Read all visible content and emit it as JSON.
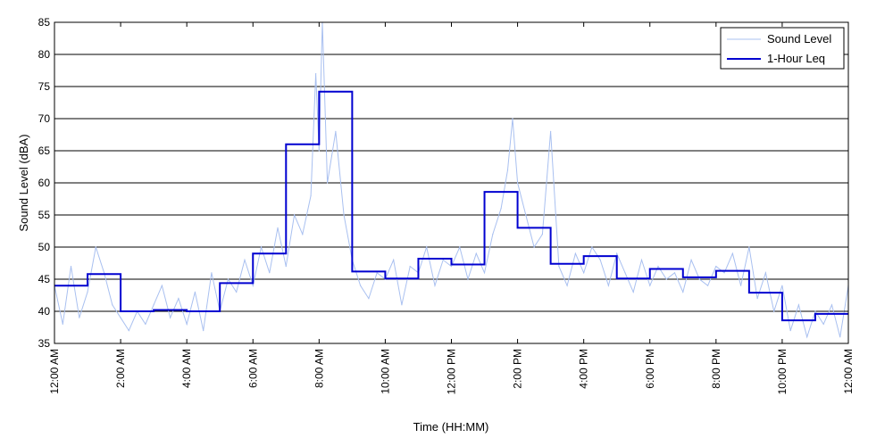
{
  "chart_data": {
    "type": "line",
    "title": "",
    "xlabel": "Time (HH:MM)",
    "ylabel": "Sound Level (dBA)",
    "xlim_hours": [
      0,
      24
    ],
    "ylim": [
      35,
      85
    ],
    "y_ticks": [
      35,
      40,
      45,
      50,
      55,
      60,
      65,
      70,
      75,
      80,
      85
    ],
    "x_ticks": [
      {
        "hour": 0,
        "label": "12:00 AM"
      },
      {
        "hour": 2,
        "label": "2:00 AM"
      },
      {
        "hour": 4,
        "label": "4:00 AM"
      },
      {
        "hour": 6,
        "label": "6:00 AM"
      },
      {
        "hour": 8,
        "label": "8:00 AM"
      },
      {
        "hour": 10,
        "label": "10:00 AM"
      },
      {
        "hour": 12,
        "label": "12:00 PM"
      },
      {
        "hour": 14,
        "label": "2:00 PM"
      },
      {
        "hour": 16,
        "label": "4:00 PM"
      },
      {
        "hour": 18,
        "label": "6:00 PM"
      },
      {
        "hour": 20,
        "label": "8:00 PM"
      },
      {
        "hour": 22,
        "label": "10:00 PM"
      },
      {
        "hour": 24,
        "label": "12:00 AM"
      }
    ],
    "grid": "horizontal",
    "legend_position": "top-right",
    "colors": {
      "sound_level": "#a9c0f0",
      "leq": "#0000d0",
      "grid": "#000000",
      "axis": "#000000"
    },
    "series": [
      {
        "name": "Sound Level",
        "style": "thin-light-line",
        "x_hours": [
          0,
          0.25,
          0.5,
          0.75,
          1,
          1.25,
          1.5,
          1.75,
          2,
          2.25,
          2.5,
          2.75,
          3,
          3.25,
          3.5,
          3.75,
          4,
          4.25,
          4.5,
          4.75,
          5,
          5.25,
          5.5,
          5.75,
          6,
          6.25,
          6.5,
          6.75,
          7,
          7.25,
          7.5,
          7.75,
          7.9,
          8,
          8.1,
          8.25,
          8.5,
          8.75,
          9,
          9.25,
          9.5,
          9.75,
          10,
          10.25,
          10.5,
          10.75,
          11,
          11.25,
          11.5,
          11.75,
          12,
          12.25,
          12.5,
          12.75,
          13,
          13.25,
          13.5,
          13.7,
          13.85,
          14,
          14.25,
          14.5,
          14.75,
          15,
          15.25,
          15.5,
          15.75,
          16,
          16.25,
          16.5,
          16.75,
          17,
          17.25,
          17.5,
          17.75,
          18,
          18.25,
          18.5,
          18.75,
          19,
          19.25,
          19.5,
          19.75,
          20,
          20.25,
          20.5,
          20.75,
          21,
          21.25,
          21.5,
          21.75,
          22,
          22.25,
          22.5,
          22.75,
          23,
          23.25,
          23.5,
          23.75,
          24
        ],
        "values": [
          44,
          38,
          47,
          39,
          43,
          50,
          46,
          41,
          39,
          37,
          40,
          38,
          41,
          44,
          39,
          42,
          38,
          43,
          37,
          46,
          40,
          45,
          43,
          48,
          44,
          50,
          46,
          53,
          47,
          55,
          52,
          58,
          77,
          65,
          85,
          60,
          68,
          55,
          48,
          44,
          42,
          46,
          45,
          48,
          41,
          47,
          46,
          50,
          44,
          48,
          47,
          50,
          45,
          49,
          46,
          52,
          56,
          62,
          70,
          60,
          55,
          50,
          52,
          68,
          47,
          44,
          49,
          46,
          50,
          48,
          44,
          49,
          46,
          43,
          48,
          44,
          47,
          45,
          46,
          43,
          48,
          45,
          44,
          47,
          46,
          49,
          44,
          50,
          42,
          46,
          40,
          44,
          37,
          41,
          36,
          40,
          38,
          41,
          36,
          44
        ]
      },
      {
        "name": "1-Hour Leq",
        "style": "step",
        "hour_start": [
          0,
          1,
          2,
          3,
          4,
          5,
          6,
          7,
          8,
          9,
          10,
          11,
          12,
          13,
          14,
          15,
          16,
          17,
          18,
          19,
          20,
          21,
          22,
          23
        ],
        "values": [
          44,
          45.8,
          40,
          40.2,
          40,
          44.4,
          49,
          66,
          74.2,
          46.2,
          45.1,
          48.2,
          47.3,
          58.6,
          53,
          47.4,
          48.6,
          45.1,
          46.6,
          45.3,
          46.3,
          42.9,
          38.6,
          39.6
        ]
      }
    ]
  }
}
